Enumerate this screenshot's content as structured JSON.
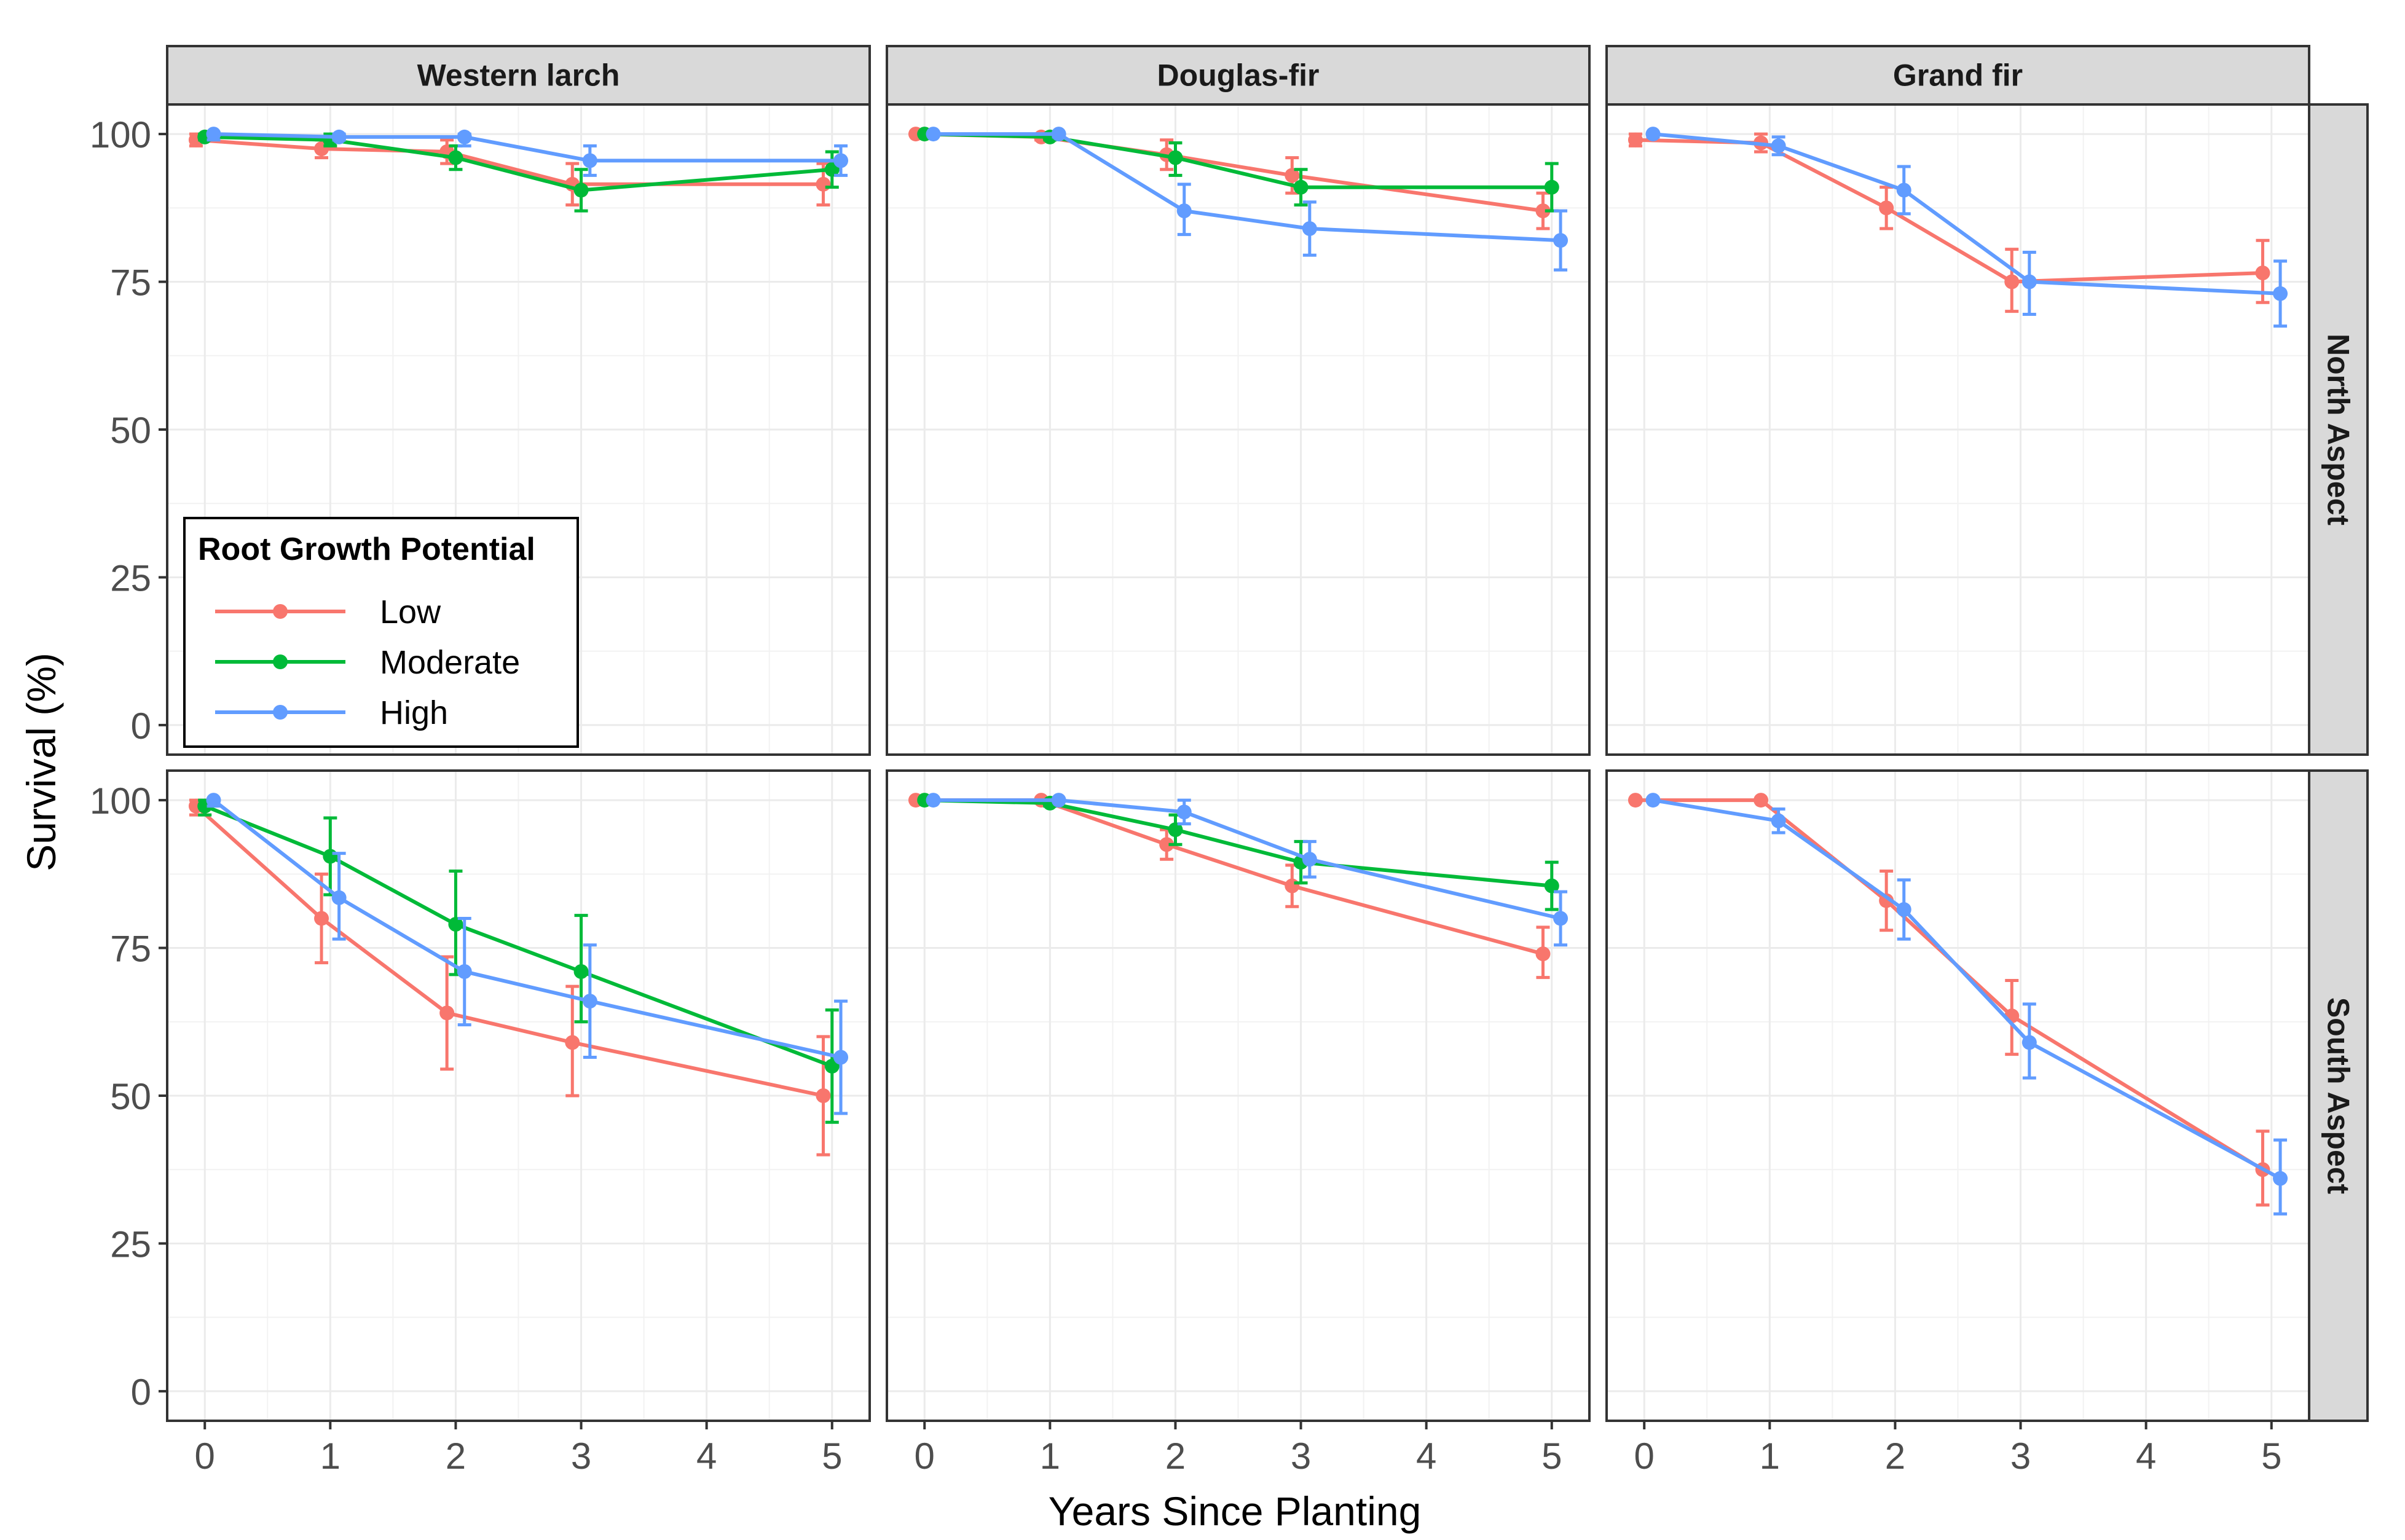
{
  "chart_data": {
    "type": "line",
    "xlabel": "Years Since Planting",
    "ylabel": "Survival (%)",
    "xlim": [
      -0.3,
      5.3
    ],
    "ylim": [
      -5,
      105
    ],
    "x_ticks": [
      0,
      1,
      2,
      3,
      4,
      5
    ],
    "y_ticks": [
      0,
      25,
      50,
      75,
      100
    ],
    "grid": true,
    "legend": {
      "title": "Root Growth Potential",
      "placement": "inside-bottom-left",
      "entries": [
        "Low",
        "Moderate",
        "High"
      ]
    },
    "colors": {
      "Low": "#F8766D",
      "Moderate": "#00BA38",
      "High": "#619CFF"
    },
    "col_labels": [
      "Western larch",
      "Douglas-fir",
      "Grand fir"
    ],
    "row_labels": [
      "North Aspect",
      "South Aspect"
    ],
    "panels": [
      {
        "species": "Western larch",
        "aspect": "North Aspect",
        "series": [
          {
            "name": "Low",
            "points": [
              {
                "x": 0,
                "y": 99,
                "lo": 98,
                "hi": 100
              },
              {
                "x": 1,
                "y": 97.5,
                "lo": 96,
                "hi": 99
              },
              {
                "x": 2,
                "y": 97,
                "lo": 95,
                "hi": 99
              },
              {
                "x": 3,
                "y": 91.5,
                "lo": 88,
                "hi": 95
              },
              {
                "x": 5,
                "y": 91.5,
                "lo": 88,
                "hi": 95
              }
            ]
          },
          {
            "name": "Moderate",
            "points": [
              {
                "x": 0,
                "y": 99.5,
                "lo": 99,
                "hi": 100
              },
              {
                "x": 1,
                "y": 99,
                "lo": 98,
                "hi": 100
              },
              {
                "x": 2,
                "y": 96,
                "lo": 94,
                "hi": 98
              },
              {
                "x": 3,
                "y": 90.5,
                "lo": 87,
                "hi": 94
              },
              {
                "x": 5,
                "y": 94,
                "lo": 91,
                "hi": 97
              }
            ]
          },
          {
            "name": "High",
            "points": [
              {
                "x": 0,
                "y": 100,
                "lo": 99,
                "hi": 100
              },
              {
                "x": 1,
                "y": 99.5,
                "lo": 99,
                "hi": 100
              },
              {
                "x": 2,
                "y": 99.5,
                "lo": 98,
                "hi": 100
              },
              {
                "x": 3,
                "y": 95.5,
                "lo": 93,
                "hi": 98
              },
              {
                "x": 5,
                "y": 95.5,
                "lo": 93,
                "hi": 98
              }
            ]
          }
        ]
      },
      {
        "species": "Douglas-fir",
        "aspect": "North Aspect",
        "series": [
          {
            "name": "Low",
            "points": [
              {
                "x": 0,
                "y": 100,
                "lo": 100,
                "hi": 100
              },
              {
                "x": 1,
                "y": 99.5,
                "lo": 99,
                "hi": 100
              },
              {
                "x": 2,
                "y": 96.5,
                "lo": 94,
                "hi": 99
              },
              {
                "x": 3,
                "y": 93,
                "lo": 90,
                "hi": 96
              },
              {
                "x": 5,
                "y": 87,
                "lo": 84,
                "hi": 90
              }
            ]
          },
          {
            "name": "Moderate",
            "points": [
              {
                "x": 0,
                "y": 100,
                "lo": 100,
                "hi": 100
              },
              {
                "x": 1,
                "y": 99.5,
                "lo": 99,
                "hi": 100
              },
              {
                "x": 2,
                "y": 96,
                "lo": 93,
                "hi": 98.5
              },
              {
                "x": 3,
                "y": 91,
                "lo": 88,
                "hi": 94
              },
              {
                "x": 5,
                "y": 91,
                "lo": 87,
                "hi": 95
              }
            ]
          },
          {
            "name": "High",
            "points": [
              {
                "x": 0,
                "y": 100,
                "lo": 100,
                "hi": 100
              },
              {
                "x": 1,
                "y": 100,
                "lo": 99.5,
                "hi": 100
              },
              {
                "x": 2,
                "y": 87,
                "lo": 83,
                "hi": 91.5
              },
              {
                "x": 3,
                "y": 84,
                "lo": 79.5,
                "hi": 88.5
              },
              {
                "x": 5,
                "y": 82,
                "lo": 77,
                "hi": 87
              }
            ]
          }
        ]
      },
      {
        "species": "Grand fir",
        "aspect": "North Aspect",
        "series": [
          {
            "name": "Low",
            "points": [
              {
                "x": 0,
                "y": 99,
                "lo": 98,
                "hi": 100
              },
              {
                "x": 1,
                "y": 98.5,
                "lo": 97,
                "hi": 100
              },
              {
                "x": 2,
                "y": 87.5,
                "lo": 84,
                "hi": 91
              },
              {
                "x": 3,
                "y": 75,
                "lo": 70,
                "hi": 80.5
              },
              {
                "x": 5,
                "y": 76.5,
                "lo": 71.5,
                "hi": 82
              }
            ]
          },
          {
            "name": "High",
            "points": [
              {
                "x": 0,
                "y": 100,
                "lo": 99.5,
                "hi": 100
              },
              {
                "x": 1,
                "y": 98,
                "lo": 96.5,
                "hi": 99.5
              },
              {
                "x": 2,
                "y": 90.5,
                "lo": 86.5,
                "hi": 94.5
              },
              {
                "x": 3,
                "y": 75,
                "lo": 69.5,
                "hi": 80
              },
              {
                "x": 5,
                "y": 73,
                "lo": 67.5,
                "hi": 78.5
              }
            ]
          }
        ]
      },
      {
        "species": "Western larch",
        "aspect": "South Aspect",
        "series": [
          {
            "name": "Low",
            "points": [
              {
                "x": 0,
                "y": 99,
                "lo": 97.5,
                "hi": 100
              },
              {
                "x": 1,
                "y": 80,
                "lo": 72.5,
                "hi": 87.5
              },
              {
                "x": 2,
                "y": 64,
                "lo": 54.5,
                "hi": 73.5
              },
              {
                "x": 3,
                "y": 59,
                "lo": 50,
                "hi": 68.5
              },
              {
                "x": 5,
                "y": 50,
                "lo": 40,
                "hi": 60
              }
            ]
          },
          {
            "name": "Moderate",
            "points": [
              {
                "x": 0,
                "y": 99,
                "lo": 97.5,
                "hi": 100
              },
              {
                "x": 1,
                "y": 90.5,
                "lo": 84,
                "hi": 97
              },
              {
                "x": 2,
                "y": 79,
                "lo": 70.5,
                "hi": 88
              },
              {
                "x": 3,
                "y": 71,
                "lo": 62.5,
                "hi": 80.5
              },
              {
                "x": 5,
                "y": 55,
                "lo": 45.5,
                "hi": 64.5
              }
            ]
          },
          {
            "name": "High",
            "points": [
              {
                "x": 0,
                "y": 100,
                "lo": 99,
                "hi": 100
              },
              {
                "x": 1,
                "y": 83.5,
                "lo": 76.5,
                "hi": 91
              },
              {
                "x": 2,
                "y": 71,
                "lo": 62,
                "hi": 80
              },
              {
                "x": 3,
                "y": 66,
                "lo": 56.5,
                "hi": 75.5
              },
              {
                "x": 5,
                "y": 56.5,
                "lo": 47,
                "hi": 66
              }
            ]
          }
        ]
      },
      {
        "species": "Douglas-fir",
        "aspect": "South Aspect",
        "series": [
          {
            "name": "Low",
            "points": [
              {
                "x": 0,
                "y": 100,
                "lo": 100,
                "hi": 100
              },
              {
                "x": 1,
                "y": 100,
                "lo": 99.5,
                "hi": 100
              },
              {
                "x": 2,
                "y": 92.5,
                "lo": 90,
                "hi": 95
              },
              {
                "x": 3,
                "y": 85.5,
                "lo": 82,
                "hi": 89
              },
              {
                "x": 5,
                "y": 74,
                "lo": 70,
                "hi": 78.5
              }
            ]
          },
          {
            "name": "Moderate",
            "points": [
              {
                "x": 0,
                "y": 100,
                "lo": 100,
                "hi": 100
              },
              {
                "x": 1,
                "y": 99.5,
                "lo": 99,
                "hi": 100
              },
              {
                "x": 2,
                "y": 95,
                "lo": 92.5,
                "hi": 97.5
              },
              {
                "x": 3,
                "y": 89.5,
                "lo": 86,
                "hi": 93
              },
              {
                "x": 5,
                "y": 85.5,
                "lo": 81.5,
                "hi": 89.5
              }
            ]
          },
          {
            "name": "High",
            "points": [
              {
                "x": 0,
                "y": 100,
                "lo": 100,
                "hi": 100
              },
              {
                "x": 1,
                "y": 100,
                "lo": 100,
                "hi": 100
              },
              {
                "x": 2,
                "y": 98,
                "lo": 96,
                "hi": 100
              },
              {
                "x": 3,
                "y": 90,
                "lo": 87,
                "hi": 93
              },
              {
                "x": 5,
                "y": 80,
                "lo": 75.5,
                "hi": 84.5
              }
            ]
          }
        ]
      },
      {
        "species": "Grand fir",
        "aspect": "South Aspect",
        "series": [
          {
            "name": "Low",
            "points": [
              {
                "x": 0,
                "y": 100,
                "lo": 100,
                "hi": 100
              },
              {
                "x": 1,
                "y": 100,
                "lo": 100,
                "hi": 100
              },
              {
                "x": 2,
                "y": 83,
                "lo": 78,
                "hi": 88
              },
              {
                "x": 3,
                "y": 63.5,
                "lo": 57,
                "hi": 69.5
              },
              {
                "x": 5,
                "y": 37.5,
                "lo": 31.5,
                "hi": 44
              }
            ]
          },
          {
            "name": "High",
            "points": [
              {
                "x": 0,
                "y": 100,
                "lo": 100,
                "hi": 100
              },
              {
                "x": 1,
                "y": 96.5,
                "lo": 94.5,
                "hi": 98.5
              },
              {
                "x": 2,
                "y": 81.5,
                "lo": 76.5,
                "hi": 86.5
              },
              {
                "x": 3,
                "y": 59,
                "lo": 53,
                "hi": 65.5
              },
              {
                "x": 5,
                "y": 36,
                "lo": 30,
                "hi": 42.5
              }
            ]
          }
        ]
      }
    ]
  }
}
